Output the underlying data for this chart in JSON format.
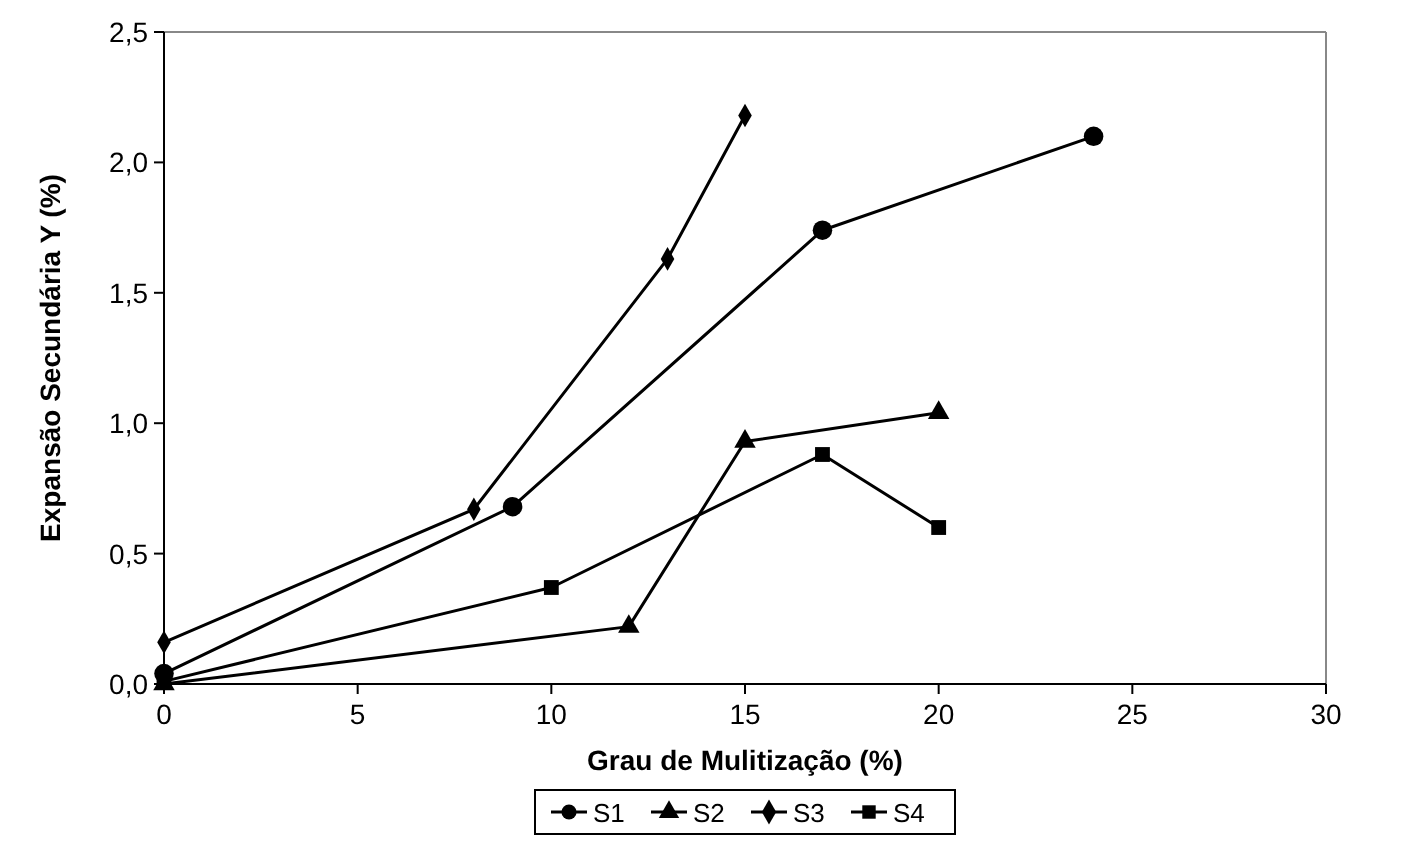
{
  "chart_data": {
    "type": "line",
    "xlabel": "Grau de Mulitização (%)",
    "ylabel": "Expansão Secundária Y (%)",
    "xlim": [
      0,
      30
    ],
    "xticks": [
      0,
      5,
      10,
      15,
      20,
      25,
      30
    ],
    "ylim": [
      0,
      2.5
    ],
    "yticks": [
      {
        "value": 0,
        "label": "0,0"
      },
      {
        "value": 0.5,
        "label": "0,5"
      },
      {
        "value": 1,
        "label": "1,0"
      },
      {
        "value": 1.5,
        "label": "1,5"
      },
      {
        "value": 2,
        "label": "2,0"
      },
      {
        "value": 2.5,
        "label": "2,5"
      }
    ],
    "grid": false,
    "legend": "bottom",
    "line_style": "solid",
    "series": [
      {
        "name": "S1",
        "color": "#000000",
        "marker": "circle",
        "x": [
          0,
          9,
          17,
          24
        ],
        "values": [
          0.04,
          0.68,
          1.74,
          2.1
        ]
      },
      {
        "name": "S2",
        "color": "#000000",
        "marker": "triangle",
        "x": [
          0,
          12,
          15,
          20
        ],
        "values": [
          0,
          0.22,
          0.93,
          1.04
        ]
      },
      {
        "name": "S3",
        "color": "#000000",
        "marker": "diamond",
        "x": [
          0,
          8,
          13,
          15
        ],
        "values": [
          0.16,
          0.67,
          1.63,
          2.18
        ]
      },
      {
        "name": "S4",
        "color": "#000000",
        "marker": "square",
        "x": [
          0,
          10,
          17,
          20
        ],
        "values": [
          0.01,
          0.37,
          0.88,
          0.6
        ]
      }
    ]
  }
}
